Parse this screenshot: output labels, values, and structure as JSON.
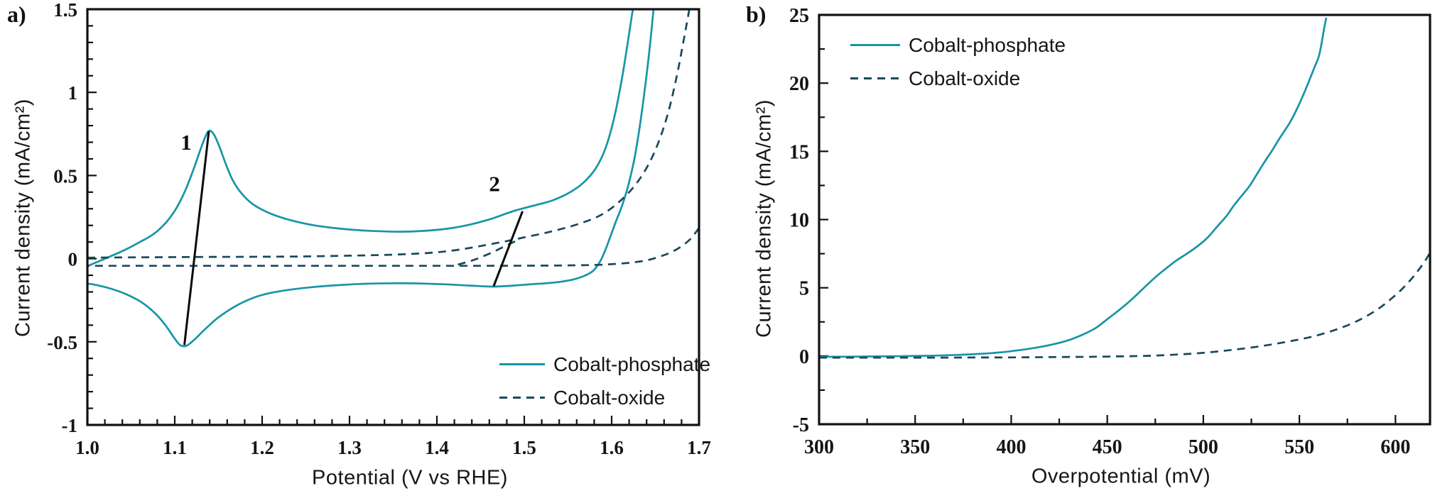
{
  "figure": {
    "background": "#ffffff",
    "axis_color": "#111111",
    "text_color": "#161616",
    "annotation_color": "#0a0a0a"
  },
  "chart_data": [
    {
      "id": "a",
      "type": "line",
      "panel_label": "a)",
      "xlabel": "Potential (V vs RHE)",
      "ylabel": "Current density (mA/cm²)",
      "xlim": [
        1.0,
        1.7
      ],
      "ylim": [
        -1,
        1.5
      ],
      "grid": false,
      "legend_position": "inside-bottom-right",
      "x_ticks": {
        "values": [
          1.0,
          1.1,
          1.2,
          1.3,
          1.4,
          1.5,
          1.6,
          1.7
        ],
        "labels": [
          "1.0",
          "1.1",
          "1.2",
          "1.3",
          "1.4",
          "1.5",
          "1.6",
          "1.7"
        ],
        "minor_step": 0.02
      },
      "y_ticks": {
        "values": [
          -1,
          -0.5,
          0,
          0.5,
          1,
          1.5
        ],
        "labels": [
          "-1",
          "-0.5",
          "0",
          "0.5",
          "1",
          "1.5"
        ],
        "minor_step": 0.1
      },
      "series": [
        {
          "name": "Cobalt-phosphate",
          "color": "#1795a6",
          "dash": "solid",
          "segments": [
            [
              [
                1.0,
                -0.045
              ],
              [
                1.015,
                -0.012
              ],
              [
                1.03,
                0.022
              ],
              [
                1.045,
                0.058
              ],
              [
                1.06,
                0.1
              ],
              [
                1.072,
                0.135
              ],
              [
                1.082,
                0.175
              ],
              [
                1.092,
                0.23
              ],
              [
                1.102,
                0.305
              ],
              [
                1.112,
                0.41
              ],
              [
                1.122,
                0.545
              ],
              [
                1.13,
                0.665
              ],
              [
                1.136,
                0.745
              ],
              [
                1.14,
                0.77
              ],
              [
                1.145,
                0.745
              ],
              [
                1.151,
                0.675
              ],
              [
                1.158,
                0.575
              ],
              [
                1.166,
                0.475
              ],
              [
                1.176,
                0.395
              ],
              [
                1.19,
                0.325
              ],
              [
                1.21,
                0.27
              ],
              [
                1.232,
                0.232
              ],
              [
                1.258,
                0.202
              ],
              [
                1.29,
                0.18
              ],
              [
                1.32,
                0.168
              ],
              [
                1.36,
                0.162
              ],
              [
                1.4,
                0.173
              ],
              [
                1.43,
                0.196
              ],
              [
                1.46,
                0.236
              ],
              [
                1.487,
                0.285
              ],
              [
                1.51,
                0.318
              ],
              [
                1.532,
                0.35
              ],
              [
                1.552,
                0.398
              ],
              [
                1.568,
                0.458
              ],
              [
                1.582,
                0.545
              ],
              [
                1.593,
                0.665
              ],
              [
                1.603,
                0.85
              ],
              [
                1.612,
                1.09
              ],
              [
                1.619,
                1.32
              ],
              [
                1.626,
                1.56
              ]
            ],
            [
              [
                1.649,
                1.56
              ],
              [
                1.644,
                1.29
              ],
              [
                1.638,
                1.02
              ],
              [
                1.632,
                0.79
              ],
              [
                1.626,
                0.6
              ],
              [
                1.619,
                0.44
              ],
              [
                1.612,
                0.32
              ],
              [
                1.605,
                0.225
              ],
              [
                1.599,
                0.14
              ],
              [
                1.593,
                0.055
              ],
              [
                1.587,
                -0.015
              ],
              [
                1.579,
                -0.072
              ],
              [
                1.569,
                -0.103
              ],
              [
                1.557,
                -0.124
              ],
              [
                1.543,
                -0.138
              ],
              [
                1.527,
                -0.147
              ],
              [
                1.508,
                -0.154
              ],
              [
                1.487,
                -0.162
              ],
              [
                1.464,
                -0.168
              ],
              [
                1.438,
                -0.162
              ],
              [
                1.408,
                -0.154
              ],
              [
                1.378,
                -0.149
              ],
              [
                1.348,
                -0.148
              ],
              [
                1.318,
                -0.151
              ],
              [
                1.288,
                -0.159
              ],
              [
                1.258,
                -0.171
              ],
              [
                1.233,
                -0.186
              ],
              [
                1.209,
                -0.207
              ],
              [
                1.189,
                -0.237
              ],
              [
                1.169,
                -0.287
              ],
              [
                1.149,
                -0.357
              ],
              [
                1.134,
                -0.428
              ],
              [
                1.122,
                -0.489
              ],
              [
                1.113,
                -0.525
              ],
              [
                1.106,
                -0.519
              ],
              [
                1.099,
                -0.474
              ],
              [
                1.089,
                -0.398
              ],
              [
                1.077,
                -0.326
              ],
              [
                1.061,
                -0.259
              ],
              [
                1.044,
                -0.213
              ],
              [
                1.027,
                -0.181
              ],
              [
                1.011,
                -0.159
              ],
              [
                1.0,
                -0.15
              ]
            ]
          ]
        },
        {
          "name": "Cobalt-oxide",
          "color": "#18495c",
          "dash": "dashed",
          "segments": [
            [
              [
                1.0,
                0.006
              ],
              [
                1.06,
                0.008
              ],
              [
                1.12,
                0.01
              ],
              [
                1.18,
                0.011
              ],
              [
                1.24,
                0.013
              ],
              [
                1.3,
                0.018
              ],
              [
                1.35,
                0.024
              ],
              [
                1.39,
                0.034
              ],
              [
                1.42,
                0.05
              ],
              [
                1.45,
                0.076
              ],
              [
                1.48,
                0.106
              ],
              [
                1.5,
                0.128
              ],
              [
                1.53,
                0.162
              ],
              [
                1.56,
                0.205
              ],
              [
                1.585,
                0.255
              ],
              [
                1.605,
                0.325
              ],
              [
                1.625,
                0.43
              ],
              [
                1.641,
                0.555
              ],
              [
                1.654,
                0.705
              ],
              [
                1.665,
                0.885
              ],
              [
                1.675,
                1.11
              ],
              [
                1.683,
                1.33
              ],
              [
                1.691,
                1.56
              ]
            ],
            [
              [
                1.7,
                0.185
              ],
              [
                1.691,
                0.123
              ],
              [
                1.681,
                0.078
              ],
              [
                1.669,
                0.041
              ],
              [
                1.656,
                0.014
              ],
              [
                1.641,
                -0.009
              ],
              [
                1.624,
                -0.023
              ],
              [
                1.606,
                -0.031
              ],
              [
                1.586,
                -0.037
              ],
              [
                1.56,
                -0.04
              ],
              [
                1.52,
                -0.042
              ],
              [
                1.45,
                -0.043
              ],
              [
                1.35,
                -0.043
              ],
              [
                1.25,
                -0.043
              ],
              [
                1.15,
                -0.043
              ],
              [
                1.05,
                -0.043
              ],
              [
                1.0,
                -0.043
              ]
            ],
            [
              [
                1.424,
                -0.036
              ],
              [
                1.442,
                -0.008
              ],
              [
                1.46,
                0.03
              ],
              [
                1.478,
                0.075
              ],
              [
                1.495,
                0.118
              ]
            ]
          ]
        }
      ],
      "annotations": [
        {
          "label": "1",
          "label_at": [
            1.113,
            0.655
          ],
          "line": [
            [
              1.139,
              0.766
            ],
            [
              1.111,
              -0.52
            ]
          ]
        },
        {
          "label": "2",
          "label_at": [
            1.466,
            0.405
          ],
          "line": [
            [
              1.498,
              0.285
            ],
            [
              1.465,
              -0.165
            ]
          ]
        }
      ]
    },
    {
      "id": "b",
      "type": "line",
      "panel_label": "b)",
      "xlabel": "Overpotential (mV)",
      "ylabel": "Current density (mA/cm²)",
      "xlim": [
        300,
        618
      ],
      "ylim": [
        -5,
        25
      ],
      "grid": false,
      "legend_position": "inside-top-left",
      "x_ticks": {
        "values": [
          300,
          350,
          400,
          450,
          500,
          550,
          600
        ],
        "labels": [
          "300",
          "350",
          "400",
          "450",
          "500",
          "550",
          "600"
        ],
        "minor_step": 25
      },
      "y_ticks": {
        "values": [
          -5,
          0,
          5,
          10,
          15,
          20,
          25
        ],
        "labels": [
          "-5",
          "0",
          "5",
          "10",
          "15",
          "20",
          "25"
        ],
        "minor_step": 2.5
      },
      "series": [
        {
          "name": "Cobalt-phosphate",
          "color": "#1795a6",
          "dash": "solid",
          "segments": [
            [
              [
                300,
                -0.05
              ],
              [
                315,
                -0.05
              ],
              [
                330,
                -0.03
              ],
              [
                345,
                -0.01
              ],
              [
                360,
                0.03
              ],
              [
                372,
                0.08
              ],
              [
                383,
                0.15
              ],
              [
                393,
                0.25
              ],
              [
                402,
                0.39
              ],
              [
                411,
                0.57
              ],
              [
                420,
                0.8
              ],
              [
                429,
                1.12
              ],
              [
                437,
                1.55
              ],
              [
                444,
                2.05
              ],
              [
                450,
                2.7
              ],
              [
                456,
                3.35
              ],
              [
                462,
                4.05
              ],
              [
                468,
                4.85
              ],
              [
                474,
                5.65
              ],
              [
                480,
                6.35
              ],
              [
                486,
                7.0
              ],
              [
                492,
                7.55
              ],
              [
                497,
                8.05
              ],
              [
                502,
                8.65
              ],
              [
                507,
                9.45
              ],
              [
                512,
                10.25
              ],
              [
                516,
                11.05
              ],
              [
                520,
                11.75
              ],
              [
                524,
                12.45
              ],
              [
                528,
                13.35
              ],
              [
                532,
                14.25
              ],
              [
                536,
                15.1
              ],
              [
                539,
                15.8
              ],
              [
                542,
                16.45
              ],
              [
                545,
                17.1
              ],
              [
                548,
                17.9
              ],
              [
                551,
                18.8
              ],
              [
                554,
                19.8
              ],
              [
                556,
                20.5
              ],
              [
                558,
                21.2
              ],
              [
                560,
                21.9
              ],
              [
                561,
                22.5
              ],
              [
                562,
                23.3
              ],
              [
                563,
                24.1
              ],
              [
                564,
                24.8
              ]
            ]
          ]
        },
        {
          "name": "Cobalt-oxide",
          "color": "#18495c",
          "dash": "dashed",
          "segments": [
            [
              [
                300,
                -0.12
              ],
              [
                330,
                -0.12
              ],
              [
                360,
                -0.12
              ],
              [
                380,
                -0.11
              ],
              [
                400,
                -0.1
              ],
              [
                420,
                -0.08
              ],
              [
                440,
                -0.06
              ],
              [
                455,
                -0.03
              ],
              [
                468,
                0.0
              ],
              [
                478,
                0.05
              ],
              [
                488,
                0.12
              ],
              [
                497,
                0.2
              ],
              [
                505,
                0.3
              ],
              [
                513,
                0.42
              ],
              [
                521,
                0.55
              ],
              [
                529,
                0.7
              ],
              [
                537,
                0.88
              ],
              [
                545,
                1.08
              ],
              [
                553,
                1.3
              ],
              [
                561,
                1.58
              ],
              [
                569,
                1.93
              ],
              [
                577,
                2.36
              ],
              [
                584,
                2.85
              ],
              [
                591,
                3.45
              ],
              [
                597,
                4.1
              ],
              [
                603,
                4.85
              ],
              [
                608,
                5.6
              ],
              [
                612,
                6.3
              ],
              [
                616,
                7.1
              ],
              [
                619,
                7.85
              ],
              [
                621,
                8.35
              ]
            ]
          ]
        }
      ],
      "annotations": []
    }
  ]
}
